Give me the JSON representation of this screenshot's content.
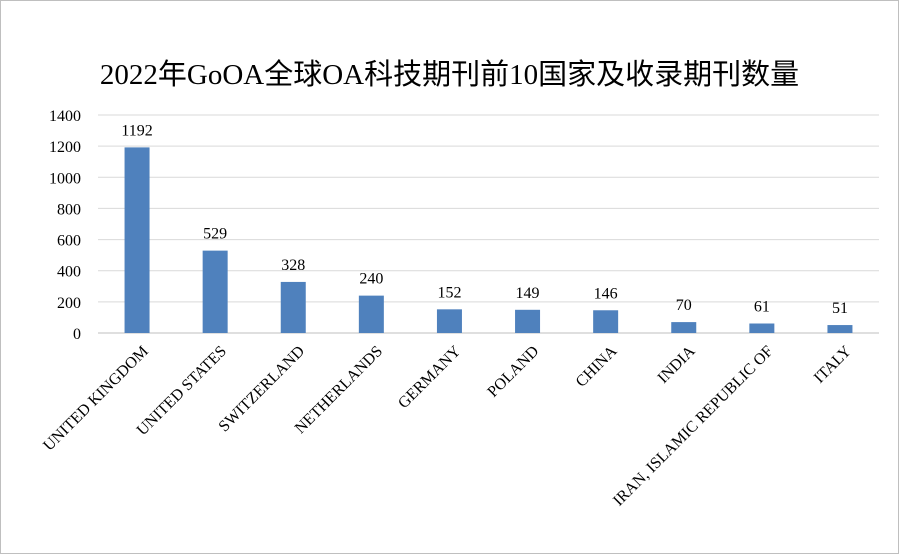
{
  "chart_data": {
    "type": "bar",
    "title": "2022年GoOA全球OA科技期刊前10国家及收录期刊数量",
    "xlabel": "",
    "ylabel": "",
    "ylim": [
      0,
      1400
    ],
    "yticks": [
      0,
      200,
      400,
      600,
      800,
      1000,
      1200,
      1400
    ],
    "grid": true,
    "legend": "none",
    "bar_color": "#4f81bd",
    "categories": [
      "UNITED KINGDOM",
      "UNITED STATES",
      "SWITZERLAND",
      "NETHERLANDS",
      "GERMANY",
      "POLAND",
      "CHINA",
      "INDIA",
      "IRAN, ISLAMIC REPUBLIC OF",
      "ITALY"
    ],
    "values": [
      1192,
      529,
      328,
      240,
      152,
      149,
      146,
      70,
      61,
      51
    ]
  }
}
